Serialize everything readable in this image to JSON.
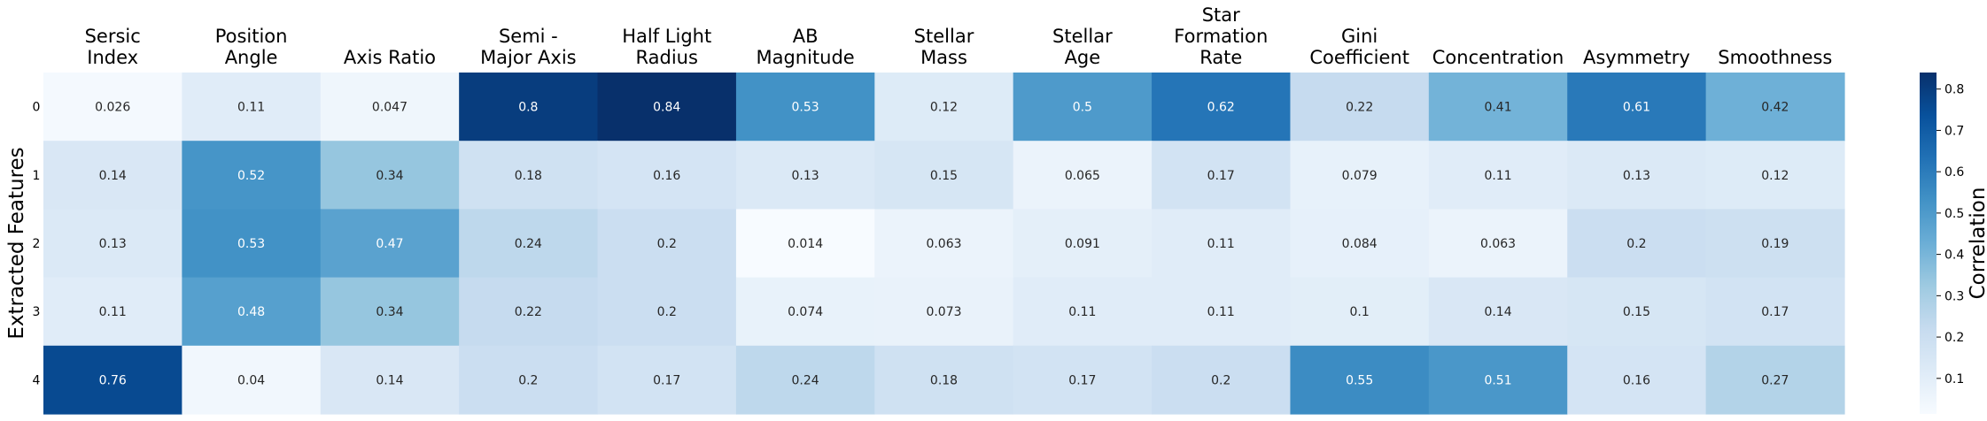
{
  "chart_data": {
    "type": "heatmap",
    "title": "",
    "xlabel": "",
    "ylabel": "Extracted Features",
    "colorbar_label": "Correlation",
    "colormap": "Blues",
    "vmin": 0.014,
    "vmax": 0.84,
    "columns": [
      [
        "Sersic",
        "Index"
      ],
      [
        "Position",
        "Angle"
      ],
      [
        "Axis Ratio"
      ],
      [
        "Semi -",
        "Major Axis"
      ],
      [
        "Half Light",
        "Radius"
      ],
      [
        "AB",
        "Magnitude"
      ],
      [
        "Stellar",
        "Mass"
      ],
      [
        "Stellar",
        "Age"
      ],
      [
        "Star",
        "Formation",
        "Rate"
      ],
      [
        "Gini",
        "Coefficient"
      ],
      [
        "Concentration"
      ],
      [
        "Asymmetry"
      ],
      [
        "Smoothness"
      ]
    ],
    "rows": [
      "0",
      "1",
      "2",
      "3",
      "4"
    ],
    "values": [
      [
        0.026,
        0.11,
        0.047,
        0.8,
        0.84,
        0.53,
        0.12,
        0.5,
        0.62,
        0.22,
        0.41,
        0.61,
        0.42
      ],
      [
        0.14,
        0.52,
        0.34,
        0.18,
        0.16,
        0.13,
        0.15,
        0.065,
        0.17,
        0.079,
        0.11,
        0.13,
        0.12
      ],
      [
        0.13,
        0.53,
        0.47,
        0.24,
        0.2,
        0.014,
        0.063,
        0.091,
        0.11,
        0.084,
        0.063,
        0.2,
        0.19
      ],
      [
        0.11,
        0.48,
        0.34,
        0.22,
        0.2,
        0.074,
        0.073,
        0.11,
        0.11,
        0.1,
        0.14,
        0.15,
        0.17
      ],
      [
        0.76,
        0.04,
        0.14,
        0.2,
        0.17,
        0.24,
        0.18,
        0.17,
        0.2,
        0.55,
        0.51,
        0.16,
        0.27
      ]
    ],
    "colorbar_ticks": [
      "0.1",
      "0.2",
      "0.3",
      "0.4",
      "0.5",
      "0.6",
      "0.7",
      "0.8"
    ]
  }
}
